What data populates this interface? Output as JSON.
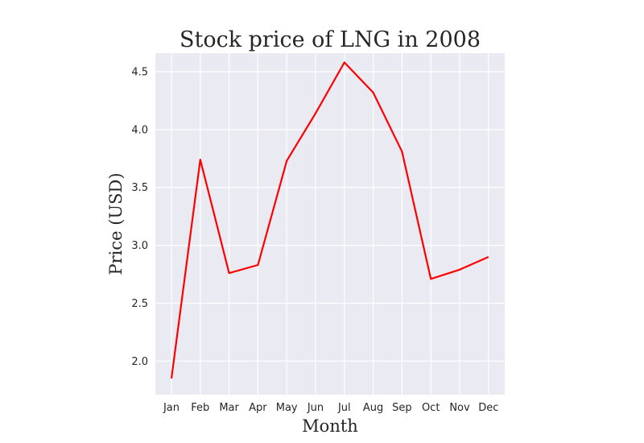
{
  "chart_data": {
    "type": "line",
    "title": "Stock price of LNG in 2008",
    "xlabel": "Month",
    "ylabel": "Price (USD)",
    "categories": [
      "Jan",
      "Feb",
      "Mar",
      "Apr",
      "May",
      "Jun",
      "Jul",
      "Aug",
      "Sep",
      "Oct",
      "Nov",
      "Dec"
    ],
    "series": [
      {
        "values": [
          1.85,
          3.74,
          2.76,
          2.83,
          3.73,
          4.14,
          4.58,
          4.32,
          3.81,
          2.71,
          2.79,
          2.9
        ],
        "color": "#ff0000"
      }
    ],
    "yticks": [
      2.0,
      2.5,
      3.0,
      3.5,
      4.0,
      4.5
    ],
    "ytick_labels": [
      "2.0",
      "2.5",
      "3.0",
      "3.5",
      "4.0",
      "4.5"
    ],
    "ylim": [
      1.71,
      4.66
    ],
    "grid": true,
    "background": "#eaeaf2",
    "grid_color": "#ffffff"
  }
}
